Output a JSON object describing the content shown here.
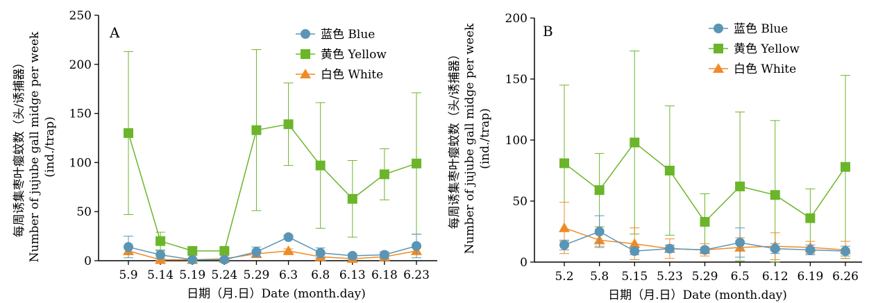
{
  "figure": {
    "x_title": "日期（月.日）Date (month.day)",
    "y_title_cn": "每周诱集枣叶瘿蚊数（头/诱捕器）",
    "y_title_en": "Number of jujube gall midge per week",
    "y_title_unit": "(ind./trap)"
  },
  "chart_data": [
    {
      "type": "line",
      "panel_label": "A",
      "categories": [
        "5.9",
        "5.14",
        "5.19",
        "5.24",
        "5.29",
        "6.3",
        "6.8",
        "6.13",
        "6.18",
        "6.23"
      ],
      "ylim": [
        0,
        250
      ],
      "yticks": [
        0,
        50,
        100,
        150,
        200,
        250
      ],
      "xlabel": "日期（月.日）Date (month.day)",
      "ylabel": "每周诱集枣叶瘿蚊数（头/诱捕器） Number of jujube gall midge per week (ind./trap)",
      "legend_position": "top-right",
      "error_bars": true,
      "series": [
        {
          "name": "蓝色 Blue",
          "color": "#5b95b5",
          "marker": "circle",
          "values": [
            14,
            6,
            1,
            1,
            9,
            24,
            8,
            5,
            6,
            15
          ],
          "errors": [
            11,
            4,
            1,
            1,
            5,
            2,
            5,
            2,
            3,
            12
          ]
        },
        {
          "name": "黄色 Yellow",
          "color": "#6bb52a",
          "marker": "square",
          "values": [
            130,
            20,
            10,
            10,
            133,
            139,
            97,
            63,
            88,
            99
          ],
          "errors": [
            83,
            9,
            0,
            0,
            82,
            42,
            64,
            39,
            26,
            72
          ]
        },
        {
          "name": "白色 White",
          "color": "#ef8b26",
          "marker": "triangle",
          "values": [
            10,
            1,
            1,
            2,
            7,
            10,
            4,
            2,
            4,
            10
          ],
          "errors": [
            4,
            1,
            1,
            1,
            3,
            2,
            2,
            1,
            2,
            3
          ]
        }
      ]
    },
    {
      "type": "line",
      "panel_label": "B",
      "categories": [
        "5.2",
        "5.8",
        "5.15",
        "5.23",
        "5.29",
        "6.5",
        "6.12",
        "6.19",
        "6.26"
      ],
      "ylim": [
        0,
        200
      ],
      "yticks": [
        0,
        50,
        100,
        150,
        200
      ],
      "xlabel": "日期（月.日）Date (month.day)",
      "ylabel": "每周诱集枣叶瘿蚊数（头/诱捕器） Number of jujube gall midge per week (ind./trap)",
      "legend_position": "top-right",
      "error_bars": true,
      "series": [
        {
          "name": "蓝色 Blue",
          "color": "#5b95b5",
          "marker": "circle",
          "values": [
            14,
            25,
            9,
            11,
            10,
            16,
            11,
            10,
            9
          ],
          "errors": [
            4,
            13,
            3,
            3,
            2,
            12,
            4,
            4,
            4
          ]
        },
        {
          "name": "黄色 Yellow",
          "color": "#6bb52a",
          "marker": "square",
          "values": [
            81,
            59,
            98,
            75,
            33,
            62,
            55,
            36,
            78
          ],
          "errors": [
            64,
            30,
            75,
            53,
            23,
            61,
            61,
            24,
            75
          ]
        },
        {
          "name": "白色 White",
          "color": "#ef8b26",
          "marker": "triangle",
          "values": [
            28,
            18,
            15,
            11,
            10,
            12,
            13,
            12,
            10
          ],
          "errors": [
            21,
            5,
            13,
            8,
            5,
            8,
            11,
            5,
            7
          ]
        }
      ]
    }
  ]
}
